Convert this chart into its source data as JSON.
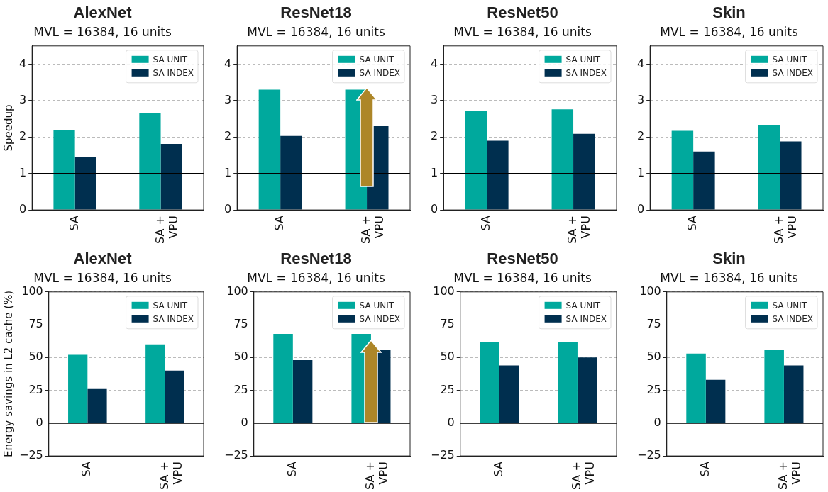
{
  "chart_data": [
    {
      "type": "bar",
      "title": "AlexNet",
      "subtitle": "MVL = 16384, 16 units",
      "ylabel": "Speedup",
      "categories": [
        "SA",
        "SA + VPU"
      ],
      "series": [
        {
          "name": "SA UNIT",
          "color": "#00a99d",
          "values": [
            2.18,
            2.66
          ]
        },
        {
          "name": "SA INDEX",
          "color": "#002f4f",
          "values": [
            1.44,
            1.81
          ]
        }
      ],
      "ylim": [
        0,
        4.5
      ],
      "yticks": [
        0,
        1,
        2,
        3,
        4
      ],
      "grid": "y",
      "legend": "top right",
      "ref_lines": [
        {
          "axis": "y",
          "value": 1,
          "color": "#000000"
        }
      ]
    },
    {
      "type": "bar",
      "title": "ResNet18",
      "subtitle": "MVL = 16384, 16 units",
      "categories": [
        "SA",
        "SA + VPU"
      ],
      "series": [
        {
          "name": "SA UNIT",
          "color": "#00a99d",
          "values": [
            3.3,
            3.3
          ]
        },
        {
          "name": "SA INDEX",
          "color": "#002f4f",
          "values": [
            2.03,
            2.3
          ]
        }
      ],
      "ylim": [
        0,
        4.5
      ],
      "yticks": [
        0,
        1,
        2,
        3,
        4
      ],
      "grid": "y",
      "legend": "top right",
      "ref_lines": [
        {
          "axis": "y",
          "value": 1,
          "color": "#000000"
        }
      ]
    },
    {
      "type": "bar",
      "title": "ResNet50",
      "subtitle": "MVL = 16384, 16 units",
      "categories": [
        "SA",
        "SA + VPU"
      ],
      "series": [
        {
          "name": "SA UNIT",
          "color": "#00a99d",
          "values": [
            2.72,
            2.76
          ]
        },
        {
          "name": "SA INDEX",
          "color": "#002f4f",
          "values": [
            1.9,
            2.09
          ]
        }
      ],
      "ylim": [
        0,
        4.5
      ],
      "yticks": [
        0,
        1,
        2,
        3,
        4
      ],
      "grid": "y",
      "legend": "top right",
      "ref_lines": [
        {
          "axis": "y",
          "value": 1,
          "color": "#000000"
        }
      ]
    },
    {
      "type": "bar",
      "title": "Skin",
      "subtitle": "MVL = 16384, 16 units",
      "categories": [
        "SA",
        "SA + VPU"
      ],
      "series": [
        {
          "name": "SA UNIT",
          "color": "#00a99d",
          "values": [
            2.17,
            2.33
          ]
        },
        {
          "name": "SA INDEX",
          "color": "#002f4f",
          "values": [
            1.6,
            1.88
          ]
        }
      ],
      "ylim": [
        0,
        4.5
      ],
      "yticks": [
        0,
        1,
        2,
        3,
        4
      ],
      "grid": "y",
      "legend": "top right",
      "ref_lines": [
        {
          "axis": "y",
          "value": 1,
          "color": "#000000"
        }
      ]
    },
    {
      "type": "bar",
      "title": "AlexNet",
      "subtitle": "MVL = 16384, 16 units",
      "ylabel": "Energy savings in L2 cache (%)",
      "categories": [
        "SA",
        "SA + VPU"
      ],
      "series": [
        {
          "name": "SA UNIT",
          "color": "#00a99d",
          "values": [
            52,
            60
          ]
        },
        {
          "name": "SA INDEX",
          "color": "#002f4f",
          "values": [
            26,
            40
          ]
        }
      ],
      "ylim": [
        -25,
        100
      ],
      "yticks": [
        -25,
        0,
        25,
        50,
        75,
        100
      ],
      "grid": "y",
      "legend": "top right",
      "ref_lines": [
        {
          "axis": "y",
          "value": 0,
          "color": "#000000"
        }
      ]
    },
    {
      "type": "bar",
      "title": "ResNet18",
      "subtitle": "MVL = 16384, 16 units",
      "categories": [
        "SA",
        "SA + VPU"
      ],
      "series": [
        {
          "name": "SA UNIT",
          "color": "#00a99d",
          "values": [
            68,
            68
          ]
        },
        {
          "name": "SA INDEX",
          "color": "#002f4f",
          "values": [
            48,
            56
          ]
        }
      ],
      "ylim": [
        -25,
        100
      ],
      "yticks": [
        -25,
        0,
        25,
        50,
        75,
        100
      ],
      "grid": "y",
      "legend": "top right",
      "ref_lines": [
        {
          "axis": "y",
          "value": 0,
          "color": "#000000"
        }
      ]
    },
    {
      "type": "bar",
      "title": "ResNet50",
      "subtitle": "MVL = 16384, 16 units",
      "categories": [
        "SA",
        "SA + VPU"
      ],
      "series": [
        {
          "name": "SA UNIT",
          "color": "#00a99d",
          "values": [
            62,
            62
          ]
        },
        {
          "name": "SA INDEX",
          "color": "#002f4f",
          "values": [
            44,
            50
          ]
        }
      ],
      "ylim": [
        -25,
        100
      ],
      "yticks": [
        -25,
        0,
        25,
        50,
        75,
        100
      ],
      "grid": "y",
      "legend": "top right",
      "ref_lines": [
        {
          "axis": "y",
          "value": 0,
          "color": "#000000"
        }
      ]
    },
    {
      "type": "bar",
      "title": "Skin",
      "subtitle": "MVL = 16384, 16 units",
      "categories": [
        "SA",
        "SA + VPU"
      ],
      "series": [
        {
          "name": "SA UNIT",
          "color": "#00a99d",
          "values": [
            53,
            56
          ]
        },
        {
          "name": "SA INDEX",
          "color": "#002f4f",
          "values": [
            33,
            44
          ]
        }
      ],
      "ylim": [
        -25,
        100
      ],
      "yticks": [
        -25,
        0,
        25,
        50,
        75,
        100
      ],
      "grid": "y",
      "legend": "top right",
      "ref_lines": [
        {
          "axis": "y",
          "value": 0,
          "color": "#000000"
        }
      ]
    }
  ]
}
